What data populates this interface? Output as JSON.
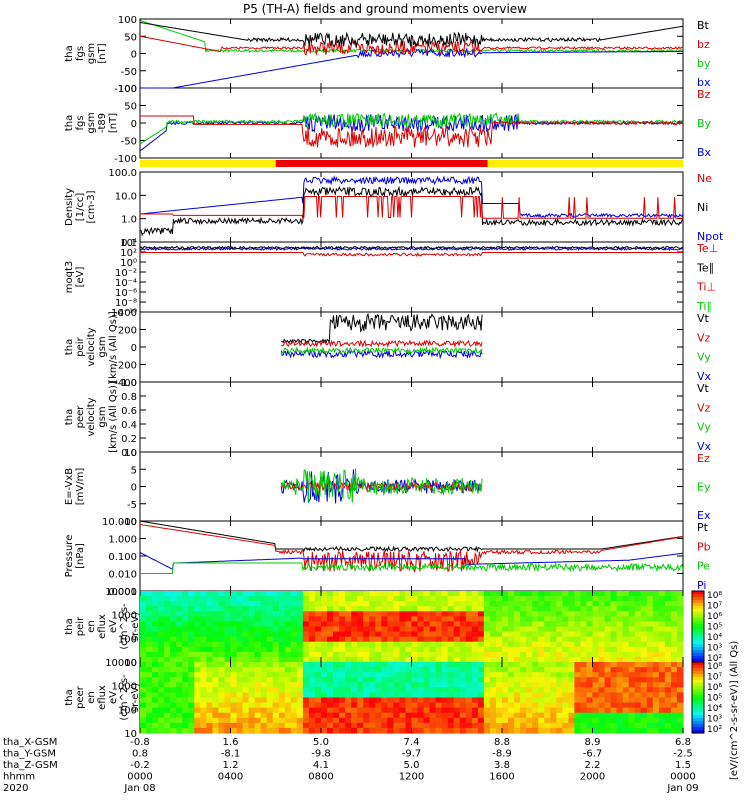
{
  "chart_data": {
    "type": "line",
    "title": "P5 (TH-A) fields and ground moments overview",
    "x_ticks": [
      "0000",
      "0400",
      "0800",
      "1200",
      "1600",
      "2000",
      "0000"
    ],
    "x_date_labels": [
      "Jan 08",
      "",
      "",
      "",
      "",
      "",
      "Jan 09"
    ],
    "ephemeris": [
      {
        "label": "tha_X-GSM",
        "values": [
          "-0.8",
          "1.6",
          "5.0",
          "7.4",
          "8.8",
          "8.9",
          "6.8"
        ]
      },
      {
        "label": "tha_Y-GSM",
        "values": [
          "0.8",
          "-8.1",
          "-9.8",
          "-9.7",
          "-8.9",
          "-6.7",
          "-2.5"
        ]
      },
      {
        "label": "tha_Z-GSM",
        "values": [
          "-0.2",
          "1.2",
          "4.1",
          "5.0",
          "3.8",
          "2.2",
          "1.5"
        ]
      },
      {
        "label": "hhmm",
        "values": [
          "0000",
          "0400",
          "0800",
          "1200",
          "1600",
          "2000",
          "0000"
        ]
      },
      {
        "label": "2020",
        "values": [
          "Jan 08",
          "",
          "",
          "",
          "",
          "",
          "Jan 09"
        ]
      }
    ],
    "panels": [
      {
        "ylabel": [
          "tha",
          "fgs",
          "gsm",
          "[nT]"
        ],
        "yticks": [
          "100",
          "50",
          "0",
          "-50",
          "-100"
        ],
        "legend": [
          {
            "name": "Bt",
            "color": "#000000"
          },
          {
            "name": "bz",
            "color": "#dd0000"
          },
          {
            "name": "by",
            "color": "#00cc00"
          },
          {
            "name": "bx",
            "color": "#0000dd"
          }
        ]
      },
      {
        "ylabel": [
          "tha",
          "fgs",
          "gsm",
          "-t89",
          "[nT]"
        ],
        "yticks": [
          "100",
          "50",
          "0",
          "-50",
          "-100"
        ],
        "legend": [
          {
            "name": "Bz",
            "color": "#dd0000"
          },
          {
            "name": "By",
            "color": "#00cc00"
          },
          {
            "name": "Bx",
            "color": "#0000dd"
          }
        ]
      },
      {
        "ylabel": [
          "Density",
          "[1/cc]",
          "[cm-3]"
        ],
        "yticks": [
          "100.0",
          "10.0",
          "1.0",
          "0.1"
        ],
        "legend": [
          {
            "name": "Ne",
            "color": "#dd0000"
          },
          {
            "name": "Ni",
            "color": "#000000"
          },
          {
            "name": "Npot",
            "color": "#0000dd"
          }
        ]
      },
      {
        "ylabel": [
          "moqt3",
          "[eV]"
        ],
        "yticks": [
          "10⁴",
          "10²",
          "10⁰",
          "10⁻²",
          "10⁻⁴",
          "10⁻⁶",
          "10⁻⁸",
          "10⁻¹⁰"
        ],
        "legend": [
          {
            "name": "Te⊥",
            "color": "#dd0000"
          },
          {
            "name": "Te∥",
            "color": "#000000"
          },
          {
            "name": "Ti⊥",
            "color": "#dd0000"
          },
          {
            "name": "Ti∥",
            "color": "#00cc00"
          }
        ]
      },
      {
        "ylabel": [
          "tha",
          "peir",
          "velocity",
          "gsm",
          "[km/s (All Qs)]"
        ],
        "yticks": [
          "400",
          "200",
          "0",
          "-200",
          "-400"
        ],
        "legend": [
          {
            "name": "Vt",
            "color": "#000000"
          },
          {
            "name": "Vz",
            "color": "#dd0000"
          },
          {
            "name": "Vy",
            "color": "#00cc00"
          },
          {
            "name": "Vx",
            "color": "#0000dd"
          }
        ]
      },
      {
        "ylabel": [
          "tha",
          "peer",
          "velocity",
          "gsm",
          "[km/s (All Qs)]"
        ],
        "yticks": [
          "1.0",
          "0.8",
          "0.6",
          "0.4",
          "0.2",
          "0.0"
        ],
        "legend": [
          {
            "name": "Vt",
            "color": "#000000"
          },
          {
            "name": "Vz",
            "color": "#dd0000"
          },
          {
            "name": "Vy",
            "color": "#00cc00"
          },
          {
            "name": "Vx",
            "color": "#0000dd"
          }
        ]
      },
      {
        "ylabel": [
          "E=-VxB",
          "[mV/m]"
        ],
        "yticks": [
          "10",
          "5",
          "0",
          "-5",
          "-10"
        ],
        "legend": [
          {
            "name": "Ez",
            "color": "#dd0000"
          },
          {
            "name": "Ey",
            "color": "#00cc00"
          },
          {
            "name": "Ex",
            "color": "#0000dd"
          }
        ]
      },
      {
        "ylabel": [
          "Pressure",
          "[nPa]"
        ],
        "yticks": [
          "10.000",
          "1.000",
          "0.100",
          "0.010",
          "0.001"
        ],
        "legend": [
          {
            "name": "Pt",
            "color": "#000000"
          },
          {
            "name": "Pb",
            "color": "#dd0000"
          },
          {
            "name": "Pe",
            "color": "#00cc00"
          },
          {
            "name": "Pi",
            "color": "#0000dd"
          }
        ]
      },
      {
        "ylabel": [
          "tha",
          "peir",
          "en",
          "eflux",
          "eV",
          "(cm^2-s-",
          "sr-eV)"
        ],
        "yticks": [
          "10000",
          "1000",
          "100",
          "10"
        ],
        "legend": []
      },
      {
        "ylabel": [
          "tha",
          "peer",
          "en",
          "eflux",
          "eV",
          "(cm^2-s-",
          "sr-eV)"
        ],
        "yticks": [
          "10000",
          "1000",
          "100",
          "10"
        ],
        "legend": []
      }
    ],
    "colorbars": [
      {
        "ticks": [
          "10⁸",
          "10⁷",
          "10⁶",
          "10⁵",
          "10⁴",
          "10³",
          "10²"
        ]
      },
      {
        "ticks": [
          "10⁸",
          "10⁷",
          "10⁶",
          "10⁵",
          "10⁴",
          "10³",
          "10²"
        ]
      }
    ],
    "colorbar_label": "[eV/(cm^2-s-sr-eV)] (All Qs)",
    "region_bar": [
      {
        "from": 0.0,
        "to": 0.25,
        "color": "#ffee00"
      },
      {
        "from": 0.25,
        "to": 0.64,
        "color": "#ee0000"
      },
      {
        "from": 0.64,
        "to": 1.0,
        "color": "#ffee00"
      }
    ]
  }
}
